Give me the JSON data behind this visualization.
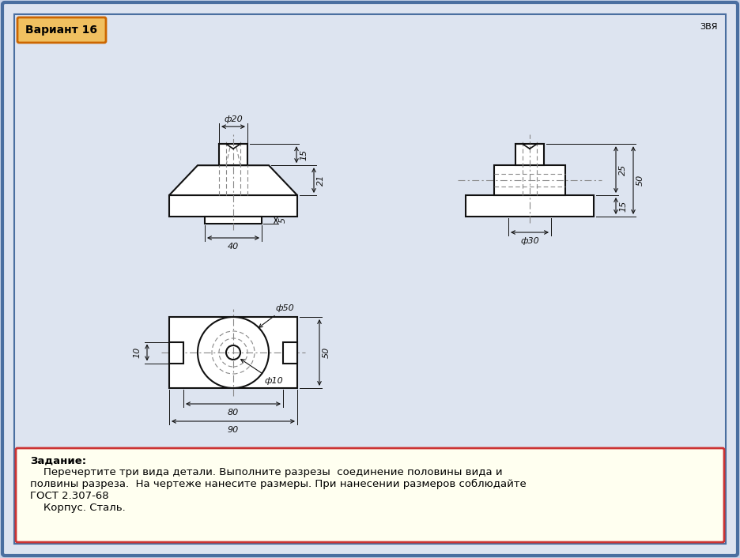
{
  "title": "Вариант 16",
  "corner_label": "ЗВЯ",
  "bg_color": "#c8d4e8",
  "drawing_bg": "#dde4f0",
  "task_bg": "#fffff0",
  "task_border": "#cc3333",
  "task_text_bold": "Задание:",
  "task_text_normal": "    Перечертите три вида детали. Выполните разрезы  соединение половины вида и\nполвины разреза.  На чертеже нанесите размеры. При нанесении размеров соблюдайте\nГОСТ 2.307-68\n    Корпус. Сталь.",
  "variant_bg": "#f0c060",
  "variant_border": "#cc6600",
  "line_color": "#111111",
  "dim_color": "#111111",
  "dash_color": "#888888",
  "sc": 2.8
}
